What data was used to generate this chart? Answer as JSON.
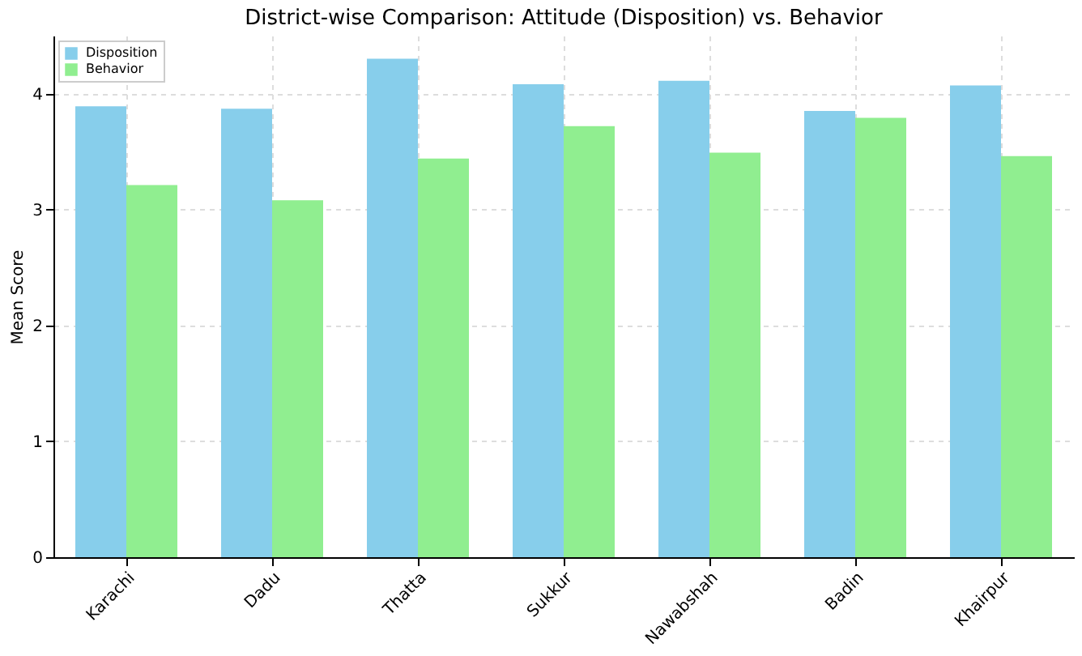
{
  "chart_data": {
    "type": "bar",
    "title": "District-wise Comparison: Attitude (Disposition) vs. Behavior",
    "ylabel": "Mean Score",
    "categories": [
      "Karachi",
      "Dadu",
      "Thatta",
      "Sukkur",
      "Nawabshah",
      "Badin",
      "Khairpur"
    ],
    "series": [
      {
        "name": "Disposition",
        "color": "#87ceeb",
        "values": [
          3.89,
          3.87,
          4.3,
          4.08,
          4.11,
          3.85,
          4.07
        ]
      },
      {
        "name": "Behavior",
        "color": "#90ee90",
        "values": [
          3.21,
          3.08,
          3.44,
          3.72,
          3.49,
          3.79,
          3.46
        ]
      }
    ],
    "ylim": [
      0,
      4.5
    ],
    "yticks": [
      0,
      1,
      2,
      3,
      4
    ],
    "grid": true,
    "legend": "top left"
  }
}
